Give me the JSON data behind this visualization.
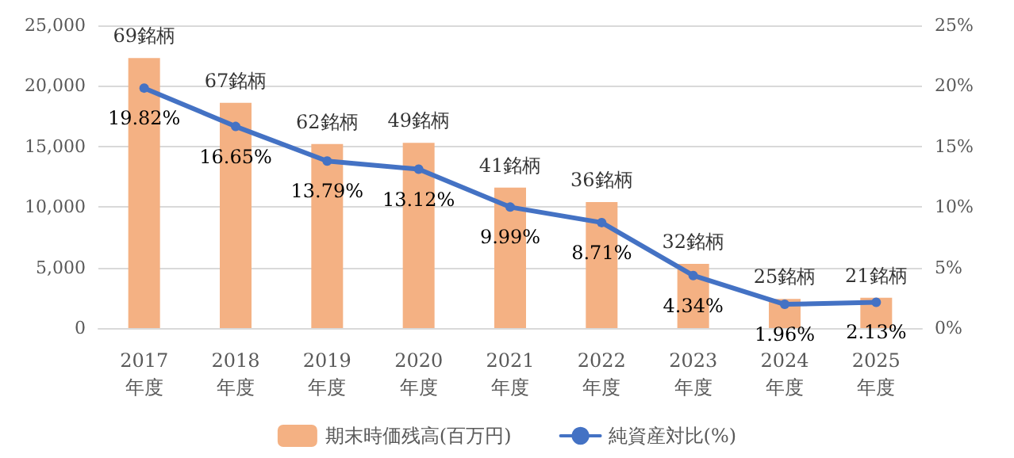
{
  "chart_data": {
    "type": "bar",
    "categories": [
      "2017\n年度",
      "2018\n年度",
      "2019\n年度",
      "2020\n年度",
      "2021\n年度",
      "2022\n年度",
      "2023\n年度",
      "2024\n年度",
      "2025\n年度"
    ],
    "series": [
      {
        "name": "期末時価残高(百万円)",
        "color": "#f4b183",
        "values": [
          22300,
          18600,
          15200,
          15300,
          11600,
          10400,
          5300,
          2400,
          2500
        ]
      },
      {
        "name": "純資産対比(%)",
        "type": "line",
        "axis": "y2",
        "color": "#4472c4",
        "values": [
          19.82,
          16.65,
          13.79,
          13.12,
          9.99,
          8.71,
          4.34,
          1.96,
          2.13
        ],
        "value_labels": [
          "19.82%",
          "16.65%",
          "13.79%",
          "13.12%",
          "9.99%",
          "8.71%",
          "4.34%",
          "1.96%",
          "2.13%"
        ]
      }
    ],
    "ylim": [
      0,
      25000
    ],
    "yticks": [
      {
        "value": 0,
        "label": "0"
      },
      {
        "value": 5000,
        "label": "5,000"
      },
      {
        "value": 10000,
        "label": "10,000"
      },
      {
        "value": 15000,
        "label": "15,000"
      },
      {
        "value": 20000,
        "label": "20,000"
      },
      {
        "value": 25000,
        "label": "25,000"
      }
    ],
    "y2lim": [
      0,
      25
    ],
    "y2ticks": [
      {
        "value": 0,
        "label": "0%"
      },
      {
        "value": 5,
        "label": "5%"
      },
      {
        "value": 10,
        "label": "10%"
      },
      {
        "value": 15,
        "label": "15%"
      },
      {
        "value": 20,
        "label": "20%"
      },
      {
        "value": 25,
        "label": "25%"
      }
    ],
    "annotations": [
      {
        "text": "69銘柄",
        "x": "2017\n年度",
        "y": 22300
      },
      {
        "text": "67銘柄",
        "x": "2018\n年度",
        "y": 18600
      },
      {
        "text": "62銘柄",
        "x": "2019\n年度",
        "y": 15200
      },
      {
        "text": "49銘柄",
        "x": "2020\n年度",
        "y": 15300
      },
      {
        "text": "41銘柄",
        "x": "2021\n年度",
        "y": 11600
      },
      {
        "text": "36銘柄",
        "x": "2022\n年度",
        "y": 10400
      },
      {
        "text": "32銘柄",
        "x": "2023\n年度",
        "y": 5300
      },
      {
        "text": "25銘柄",
        "x": "2024\n年度",
        "y": 2400
      },
      {
        "text": "21銘柄",
        "x": "2025\n年度",
        "y": 2500
      }
    ],
    "grid": "y",
    "legend": "bottom",
    "marker": "circle"
  }
}
